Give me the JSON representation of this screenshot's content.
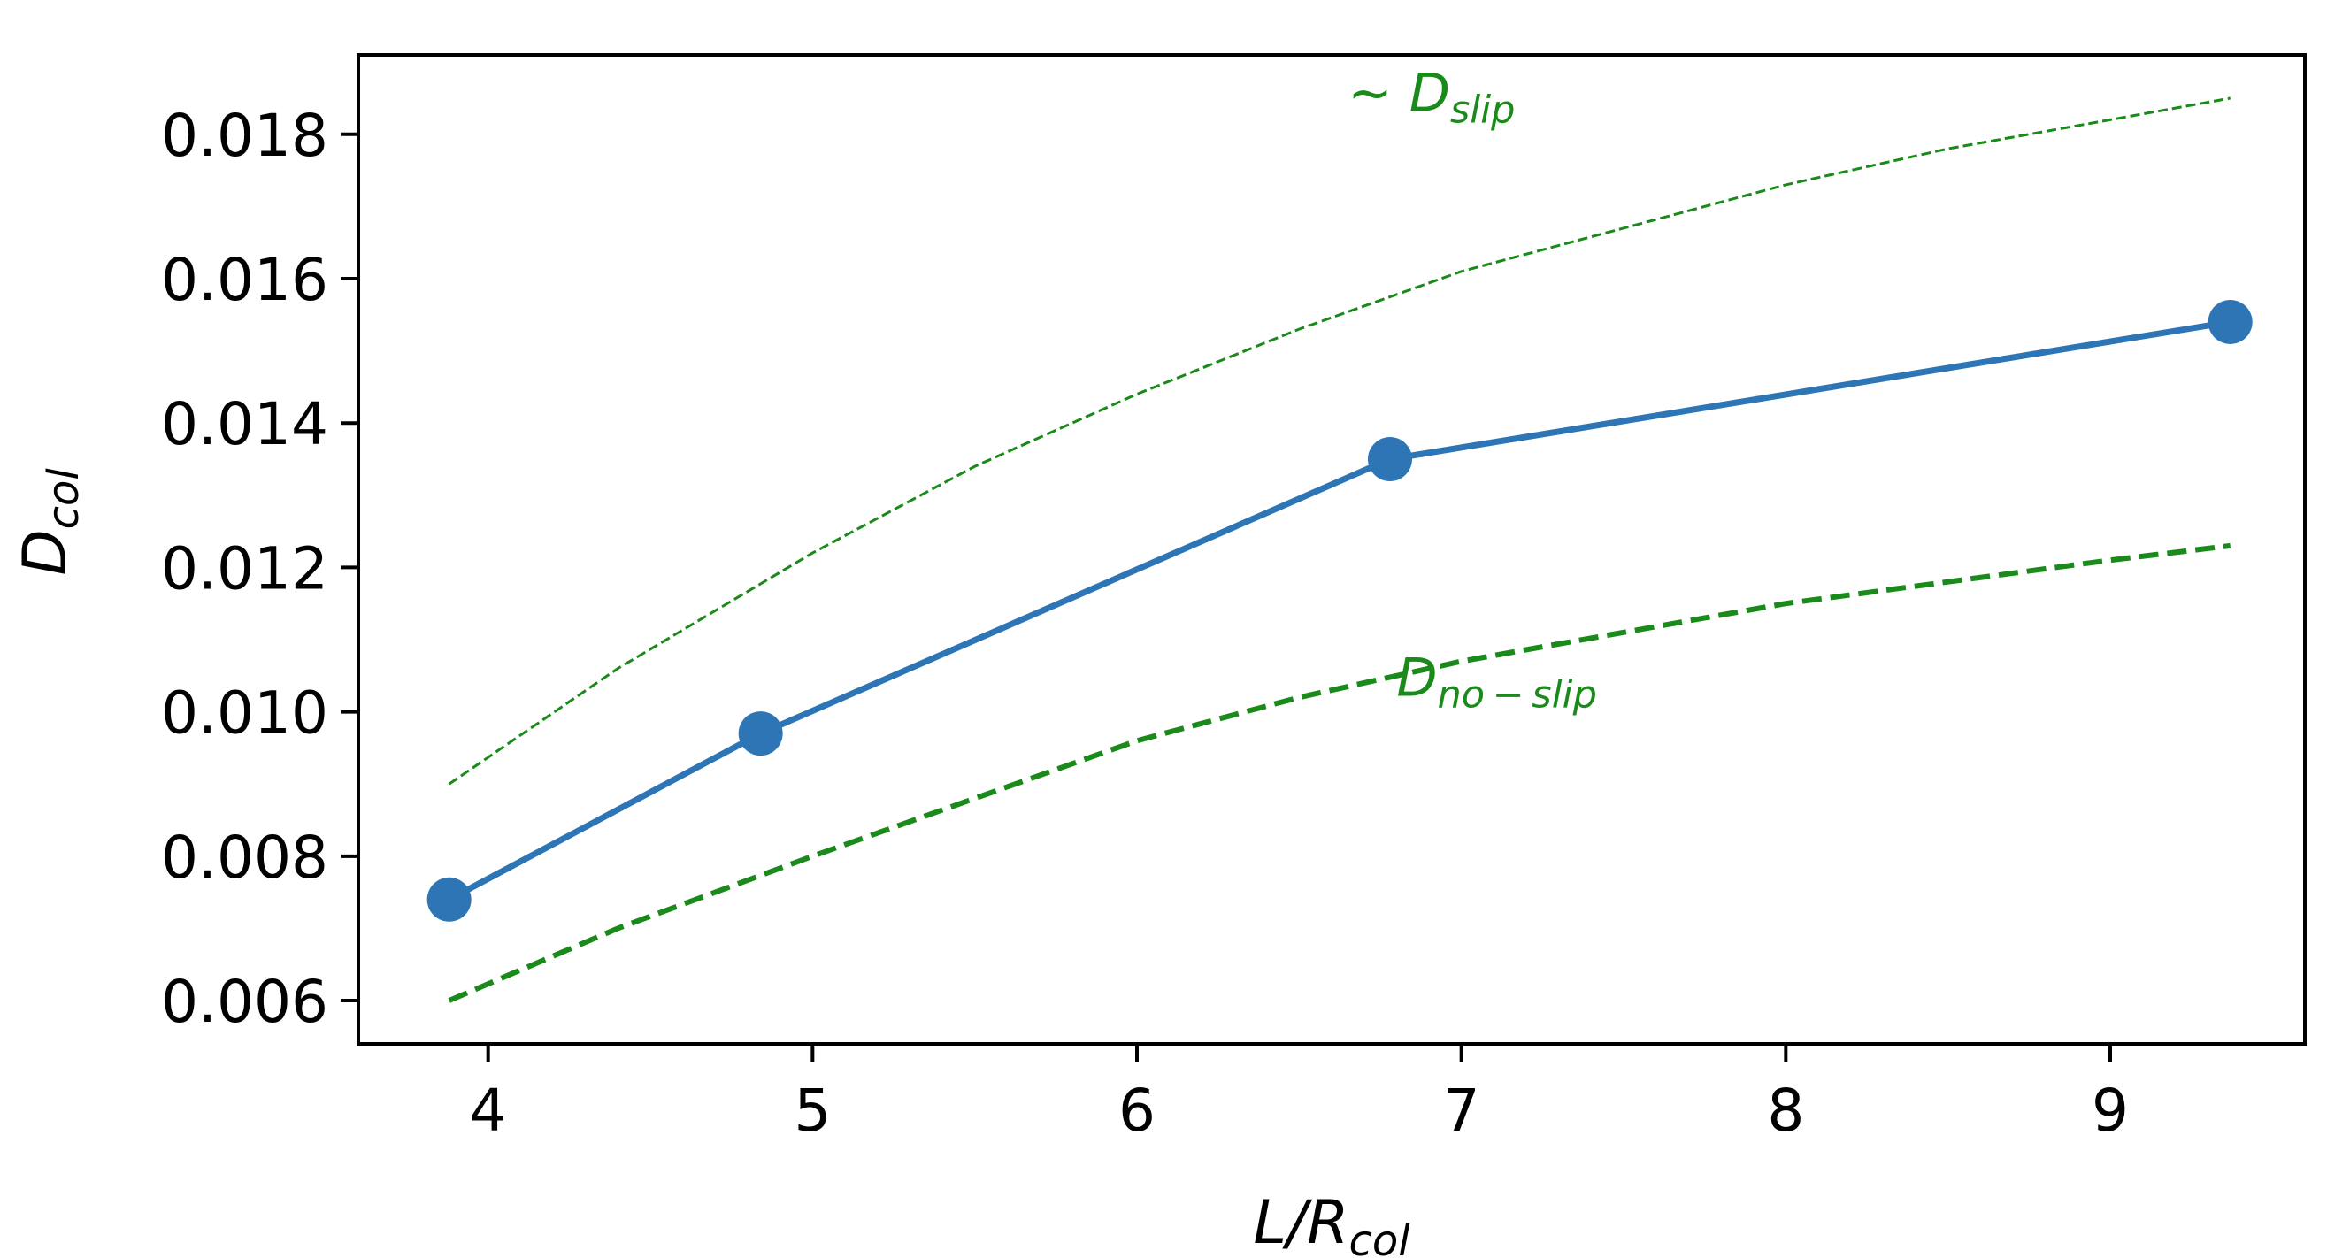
{
  "chart_data": {
    "type": "line",
    "xlabel": {
      "main": "L/R",
      "sub": "col"
    },
    "ylabel": {
      "main": "D",
      "sub": "col"
    },
    "xlim": [
      3.6,
      9.6
    ],
    "ylim": [
      0.0054,
      0.0191
    ],
    "x_ticks": [
      4,
      5,
      6,
      7,
      8,
      9
    ],
    "x_tick_labels": [
      "4",
      "5",
      "6",
      "7",
      "8",
      "9"
    ],
    "y_ticks": [
      0.006,
      0.008,
      0.01,
      0.012,
      0.014,
      0.016,
      0.018
    ],
    "y_tick_labels": [
      "0.006",
      "0.008",
      "0.010",
      "0.012",
      "0.014",
      "0.016",
      "0.018"
    ],
    "grid": false,
    "legend": "none",
    "series": [
      {
        "key": "measured",
        "style": "solid-line-with-markers",
        "color": "#2e75b6",
        "x": [
          3.88,
          4.84,
          6.78,
          9.37
        ],
        "y": [
          0.0074,
          0.0097,
          0.0135,
          0.0154
        ]
      },
      {
        "key": "slip",
        "style": "thin-dashed",
        "color": "#1a8a1a",
        "x": [
          3.88,
          4.4,
          5.0,
          5.5,
          6.0,
          6.5,
          7.0,
          7.5,
          8.0,
          8.5,
          9.0,
          9.37
        ],
        "y": [
          0.009,
          0.0106,
          0.0122,
          0.0134,
          0.0144,
          0.0153,
          0.0161,
          0.0167,
          0.0173,
          0.0178,
          0.0182,
          0.0185
        ]
      },
      {
        "key": "noslip",
        "style": "thick-dashed",
        "color": "#1a8a1a",
        "x": [
          3.88,
          4.4,
          5.0,
          5.5,
          6.0,
          6.5,
          7.0,
          7.5,
          8.0,
          8.5,
          9.0,
          9.37
        ],
        "y": [
          0.006,
          0.007,
          0.008,
          0.0088,
          0.0096,
          0.0102,
          0.0107,
          0.0111,
          0.0115,
          0.0118,
          0.0121,
          0.0123
        ]
      }
    ],
    "annotations": [
      {
        "key": "slip",
        "prefix": "~ ",
        "main": "D",
        "sub": "slip",
        "color": "#1a8a1a",
        "x": 6.65,
        "y": 0.01832
      },
      {
        "key": "noslip",
        "prefix": "",
        "main": "D",
        "sub": "no − slip",
        "color": "#1a8a1a",
        "x": 6.8,
        "y": 0.01022
      }
    ]
  }
}
